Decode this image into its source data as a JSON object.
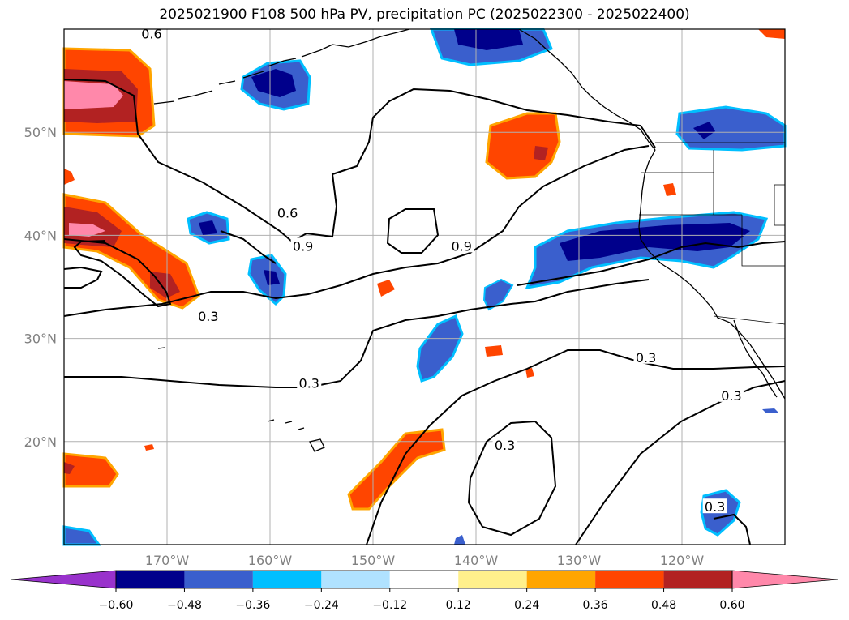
{
  "title": "2025021900 F108 500 hPa PV, precipitation PC (2025022300 - 2025022400)",
  "map": {
    "lon_range": [
      -180,
      -110
    ],
    "lat_range": [
      10,
      60
    ],
    "lon_ticks": [
      {
        "value": -170,
        "label": "170°W"
      },
      {
        "value": -160,
        "label": "160°W"
      },
      {
        "value": -150,
        "label": "150°W"
      },
      {
        "value": -140,
        "label": "140°W"
      },
      {
        "value": -130,
        "label": "130°W"
      },
      {
        "value": -120,
        "label": "120°W"
      }
    ],
    "lat_ticks": [
      {
        "value": 50,
        "label": "50°N"
      },
      {
        "value": 40,
        "label": "40°N"
      },
      {
        "value": 30,
        "label": "30°N"
      },
      {
        "value": 20,
        "label": "20°N"
      }
    ],
    "grid": true,
    "contour_labels": [
      {
        "text": "0.6",
        "lon": -171.5,
        "lat": 59.5
      },
      {
        "text": "0.6",
        "lon": -158.3,
        "lat": 42.1
      },
      {
        "text": "0.9",
        "lon": -156.8,
        "lat": 38.9
      },
      {
        "text": "0.9",
        "lon": -141.4,
        "lat": 38.9
      },
      {
        "text": "0.3",
        "lon": -166.0,
        "lat": 32.1
      },
      {
        "text": "0.3",
        "lon": -156.2,
        "lat": 25.6
      },
      {
        "text": "0.3",
        "lon": -123.5,
        "lat": 28.1
      },
      {
        "text": "0.3",
        "lon": -115.2,
        "lat": 24.4
      },
      {
        "text": "0.3",
        "lon": -137.2,
        "lat": 19.6
      },
      {
        "text": "0.3",
        "lon": -116.8,
        "lat": 13.6
      }
    ]
  },
  "colorbar": {
    "colors": [
      "#9932cc",
      "#00008b",
      "#3a5fcd",
      "#00bfff",
      "#b0e2ff",
      "#ffffff",
      "#fff08c",
      "#ffa500",
      "#ff4500",
      "#b22222",
      "#ff88aa"
    ],
    "ticks": [
      "−0.60",
      "−0.48",
      "−0.36",
      "−0.24",
      "−0.12",
      "0.12",
      "0.24",
      "0.36",
      "0.48",
      "0.60"
    ]
  },
  "fill_colors": {
    "dark_blue": "#00008b",
    "mid_blue": "#3a5fcd",
    "light_blue": "#00bfff",
    "yellow": "#fff08c",
    "orange": "#ffa500",
    "red_orange": "#ff4500",
    "dark_red": "#b22222",
    "pink": "#ff88aa"
  }
}
